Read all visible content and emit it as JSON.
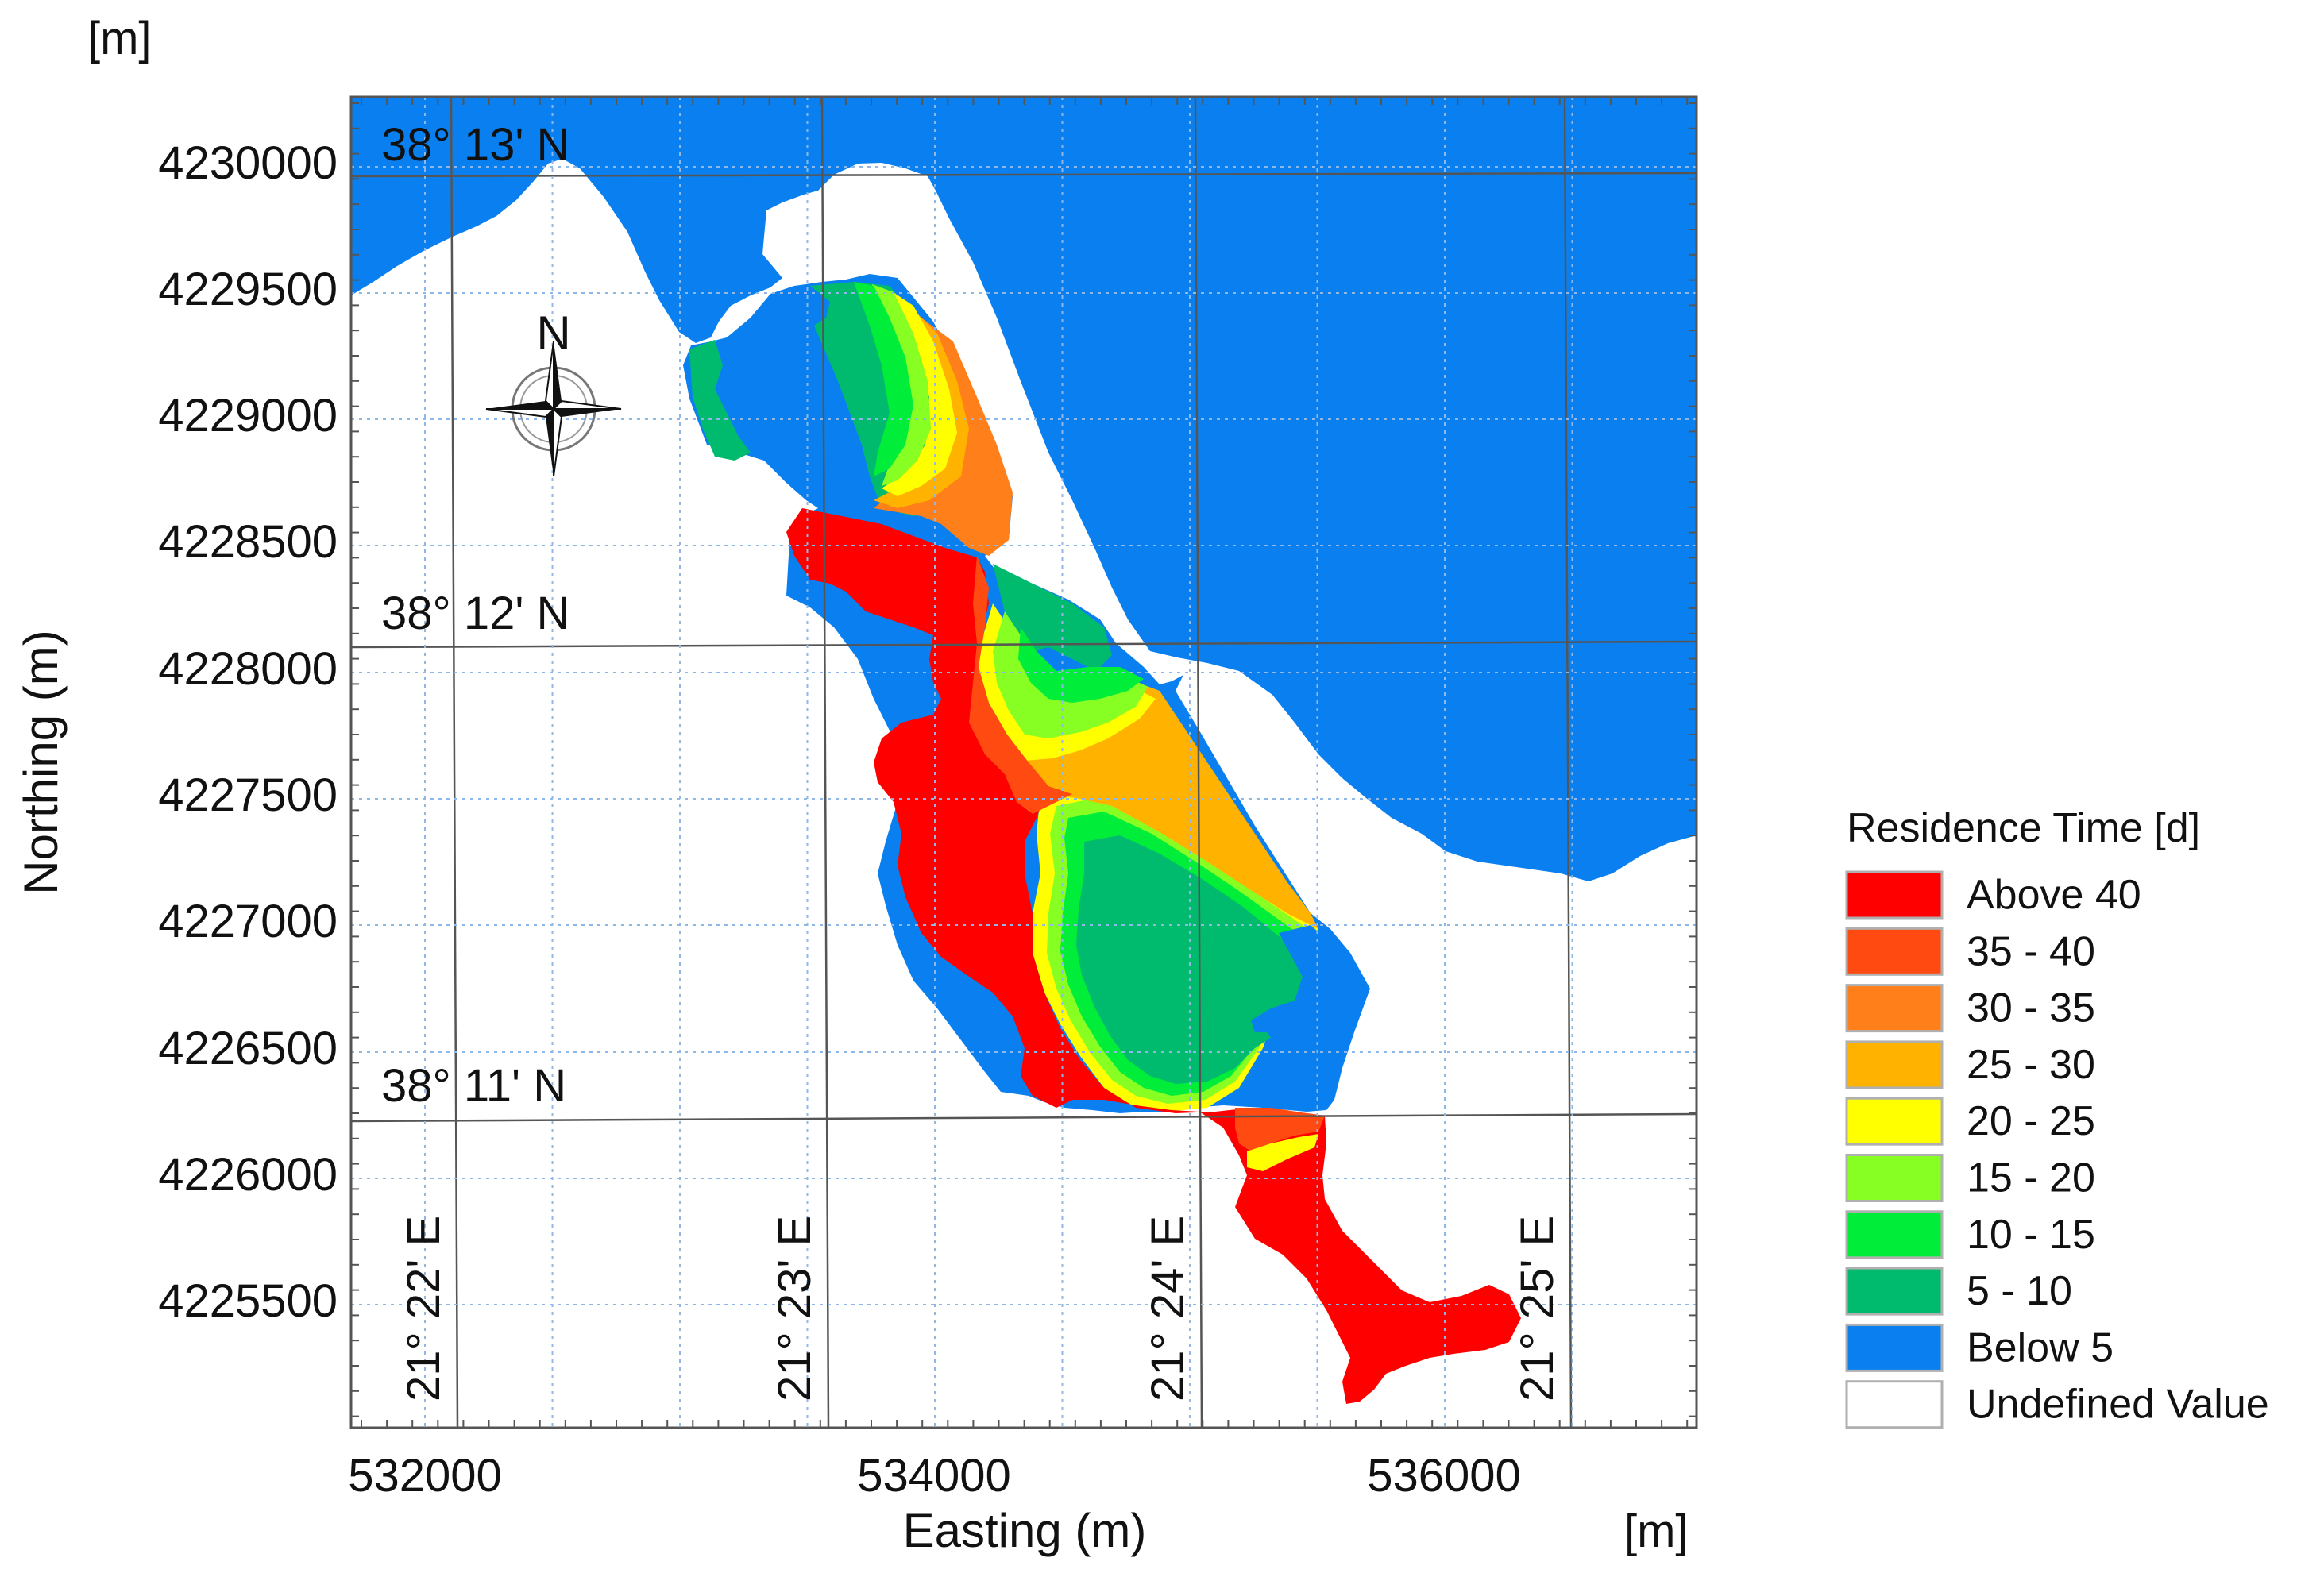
{
  "axes": {
    "x_title": "Easting (m)",
    "y_title": "Northing (m)",
    "x_unit": "[m]",
    "y_unit": "[m]",
    "x_ticks": [
      "532000",
      "534000",
      "536000"
    ],
    "y_ticks": [
      "4230000",
      "4229500",
      "4229000",
      "4228500",
      "4228000",
      "4227500",
      "4227000",
      "4226500",
      "4226000",
      "4225500"
    ]
  },
  "geo_grid": {
    "latitudes": [
      "38° 13' N",
      "38° 12' N",
      "38° 11' N"
    ],
    "longitudes": [
      "21° 22' E",
      "21° 23' E",
      "21° 24' E",
      "21° 25' E"
    ]
  },
  "compass": {
    "label": "N"
  },
  "legend": {
    "title": "Residence Time [d]",
    "items": [
      {
        "label": "Above 40",
        "color": "#ff0000"
      },
      {
        "label": "35 - 40",
        "color": "#ff4a12"
      },
      {
        "label": "30 - 35",
        "color": "#ff7f1a"
      },
      {
        "label": "25 - 30",
        "color": "#ffb300"
      },
      {
        "label": "20 - 25",
        "color": "#ffff00"
      },
      {
        "label": "15 - 20",
        "color": "#88ff22"
      },
      {
        "label": "10 - 15",
        "color": "#00ee3a"
      },
      {
        "label": "5 - 10",
        "color": "#00bb6e"
      },
      {
        "label": "Below 5",
        "color": "#0a80f0"
      },
      {
        "label": "Undefined Value",
        "color": "#ffffff"
      }
    ]
  },
  "colors": {
    "sea": "#0a80f0",
    "land": "#ffffff",
    "frame": "#555555"
  }
}
